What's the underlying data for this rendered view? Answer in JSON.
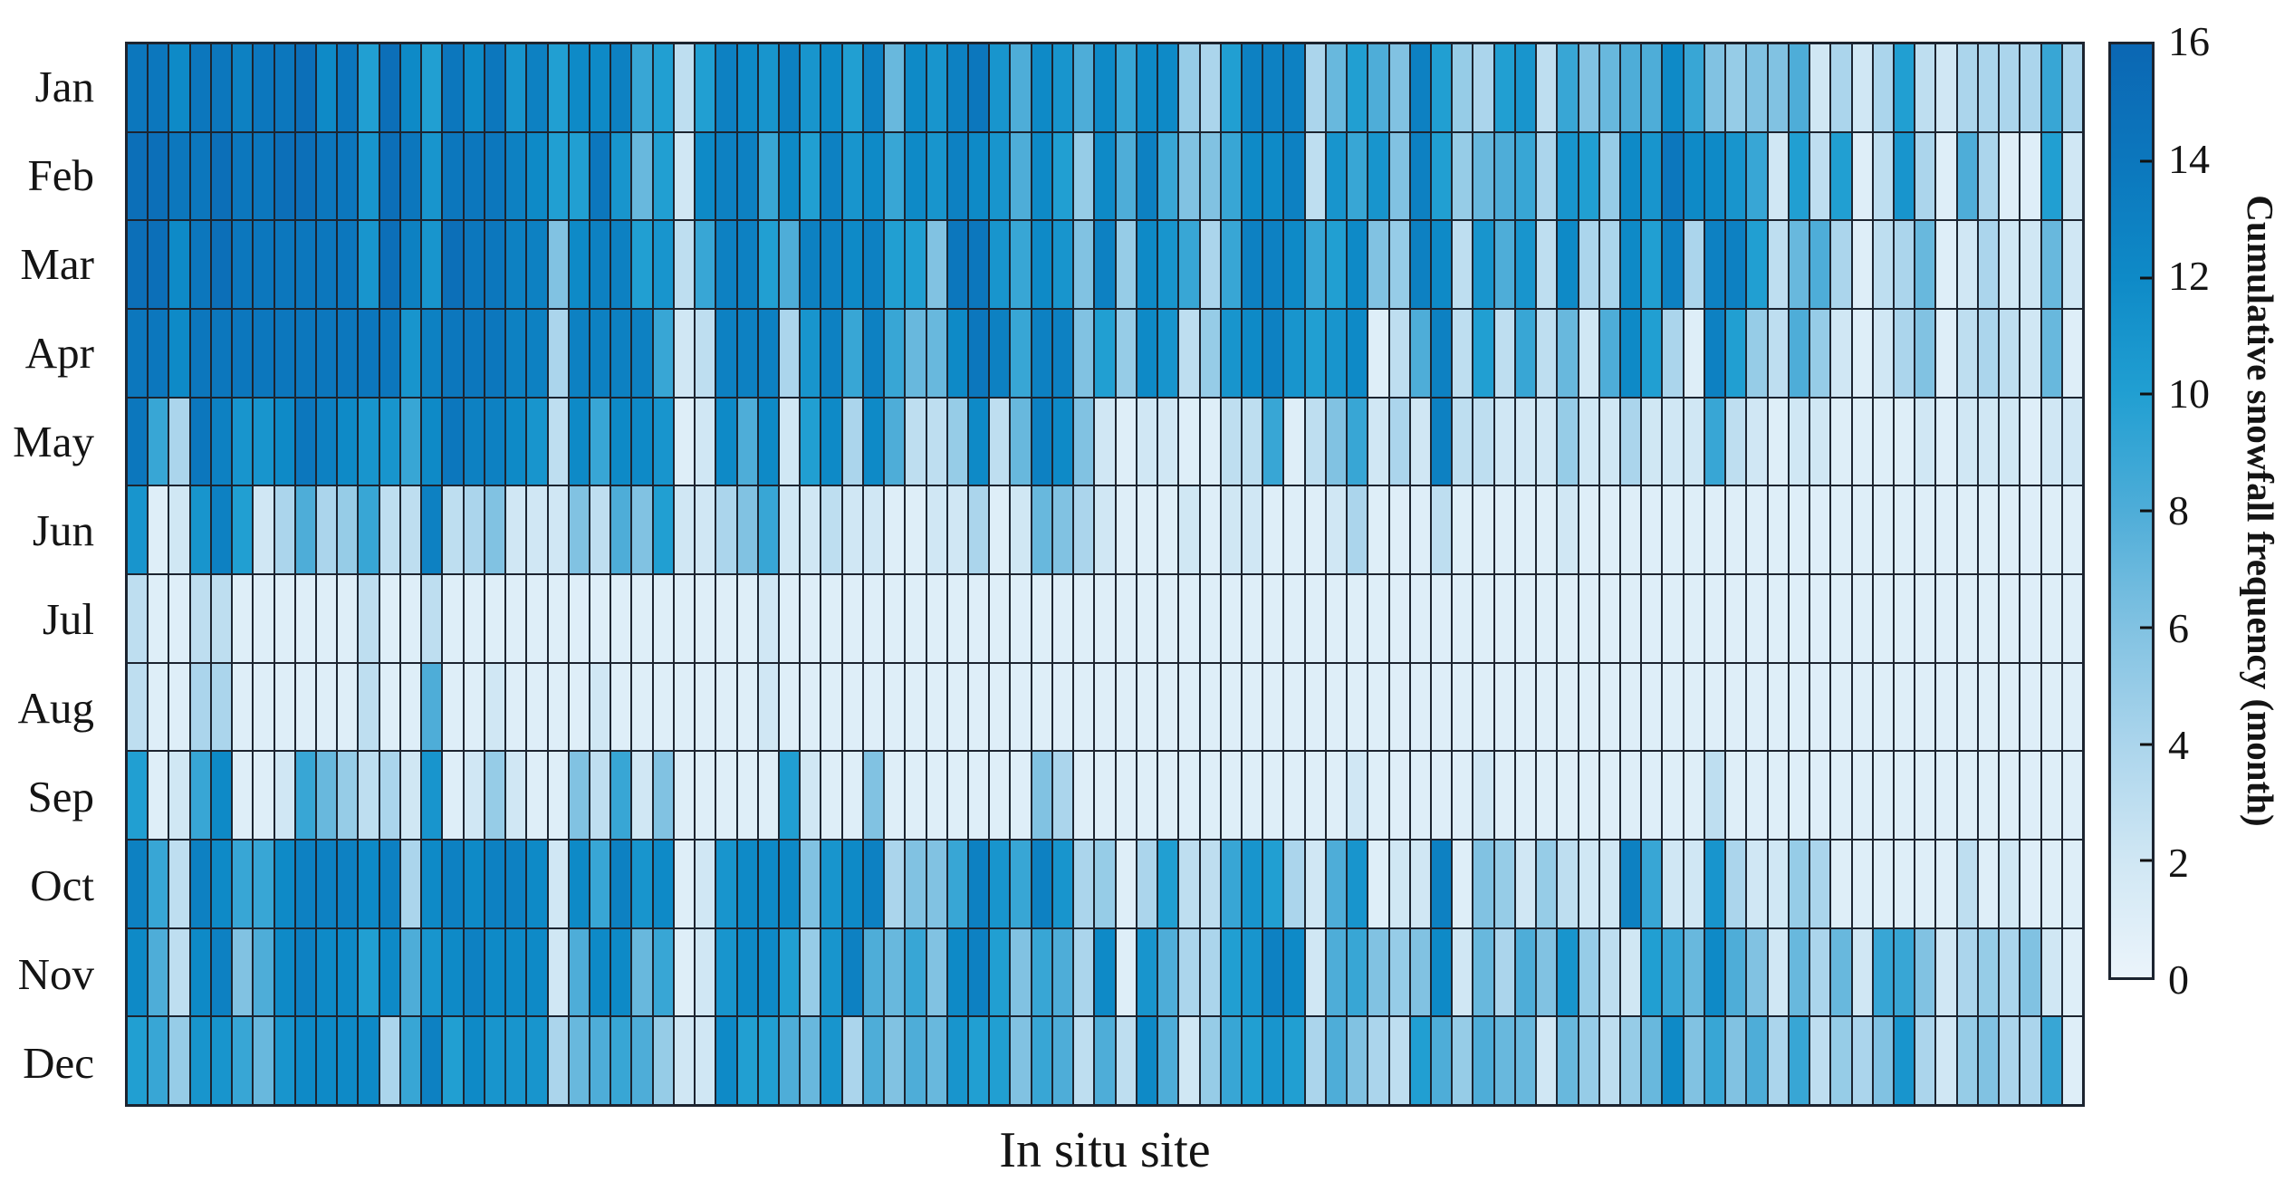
{
  "chart_data": {
    "type": "heatmap",
    "title": "",
    "xlabel": "In situ site",
    "ylabel": "",
    "n_columns": 93,
    "x_tick_labels_shown": false,
    "value_range": [
      0,
      16
    ],
    "grid": "on",
    "legend_position": "none",
    "colorbar": {
      "label": "Cumulative snowfall frequency (month)",
      "orientation": "vertical",
      "tick_labels": [
        16,
        14,
        12,
        10,
        8,
        6,
        4,
        2,
        0
      ],
      "tick_marks": [
        14,
        12,
        10,
        8,
        6,
        4,
        2
      ]
    },
    "colormap_stops": [
      {
        "value": 0,
        "color": "#ebf4fb"
      },
      {
        "value": 2,
        "color": "#d0e7f4"
      },
      {
        "value": 4,
        "color": "#abd5ec"
      },
      {
        "value": 6,
        "color": "#81c2e2"
      },
      {
        "value": 8,
        "color": "#4eadd8"
      },
      {
        "value": 10,
        "color": "#219fd2"
      },
      {
        "value": 12,
        "color": "#0e8ac7"
      },
      {
        "value": 14,
        "color": "#0c77bd"
      },
      {
        "value": 16,
        "color": "#0b67b3"
      }
    ],
    "line_color": "#1c2430",
    "series": [
      {
        "name": "Jan",
        "values": [
          14,
          14,
          12,
          14,
          14,
          13,
          14,
          14,
          15,
          12,
          14,
          10,
          15,
          12,
          10,
          14,
          12,
          14,
          11,
          13,
          10,
          12,
          12,
          13,
          9,
          10,
          3,
          10,
          13,
          12,
          11,
          13,
          11,
          12,
          10,
          13,
          7,
          12,
          11,
          13,
          14,
          11,
          8,
          12,
          11,
          8,
          12,
          9,
          12,
          12,
          5,
          4,
          10,
          13,
          13,
          13,
          4,
          7,
          10,
          8,
          6,
          13,
          10,
          5,
          4,
          10,
          11,
          3,
          9,
          6,
          7,
          8,
          8,
          12,
          9,
          6,
          5,
          6,
          6,
          8,
          2,
          4,
          2,
          4,
          10,
          3,
          2,
          4,
          4,
          4,
          4,
          9,
          4
        ]
      },
      {
        "name": "Feb",
        "values": [
          15,
          15,
          14,
          14,
          15,
          14,
          14,
          15,
          15,
          14,
          14,
          11,
          15,
          14,
          11,
          14,
          14,
          14,
          13,
          12,
          10,
          10,
          14,
          11,
          7,
          10,
          2,
          12,
          13,
          13,
          9,
          12,
          10,
          13,
          11,
          12,
          9,
          12,
          11,
          13,
          12,
          11,
          8,
          12,
          10,
          5,
          12,
          8,
          13,
          9,
          6,
          6,
          9,
          12,
          12,
          13,
          3,
          11,
          9,
          11,
          6,
          13,
          10,
          5,
          7,
          8,
          9,
          4,
          11,
          10,
          5,
          12,
          11,
          14,
          12,
          12,
          11,
          9,
          2,
          10,
          3,
          10,
          1,
          3,
          11,
          4,
          1,
          8,
          4,
          1,
          1,
          10,
          2
        ]
      },
      {
        "name": "Mar",
        "values": [
          15,
          15,
          12,
          14,
          15,
          14,
          14,
          14,
          14,
          14,
          14,
          11,
          15,
          13,
          11,
          15,
          14,
          14,
          13,
          13,
          6,
          12,
          13,
          13,
          10,
          11,
          3,
          9,
          13,
          13,
          10,
          8,
          13,
          13,
          12,
          13,
          10,
          10,
          6,
          14,
          14,
          11,
          9,
          12,
          11,
          6,
          13,
          5,
          12,
          11,
          9,
          4,
          9,
          13,
          13,
          12,
          9,
          10,
          12,
          6,
          5,
          13,
          12,
          3,
          11,
          8,
          11,
          3,
          12,
          4,
          4,
          12,
          10,
          13,
          4,
          13,
          13,
          10,
          3,
          7,
          8,
          4,
          1,
          3,
          4,
          7,
          1,
          2,
          4,
          2,
          2,
          7,
          2
        ]
      },
      {
        "name": "Apr",
        "values": [
          14,
          14,
          12,
          14,
          14,
          14,
          14,
          14,
          14,
          14,
          14,
          14,
          14,
          11,
          13,
          14,
          14,
          14,
          13,
          13,
          4,
          13,
          13,
          13,
          13,
          9,
          2,
          3,
          13,
          13,
          13,
          4,
          11,
          13,
          9,
          13,
          9,
          7,
          7,
          12,
          14,
          13,
          9,
          13,
          13,
          6,
          10,
          5,
          12,
          11,
          3,
          5,
          11,
          12,
          13,
          11,
          10,
          11,
          12,
          1,
          3,
          8,
          13,
          3,
          10,
          3,
          9,
          3,
          7,
          2,
          8,
          12,
          10,
          4,
          1,
          13,
          10,
          5,
          3,
          8,
          5,
          2,
          1,
          2,
          4,
          6,
          1,
          3,
          4,
          3,
          2,
          7,
          1
        ]
      },
      {
        "name": "May",
        "values": [
          14,
          9,
          4,
          14,
          13,
          11,
          11,
          12,
          14,
          13,
          12,
          11,
          11,
          9,
          12,
          14,
          13,
          13,
          12,
          11,
          3,
          12,
          9,
          12,
          12,
          11,
          1,
          2,
          12,
          8,
          12,
          2,
          10,
          12,
          4,
          12,
          8,
          3,
          3,
          5,
          12,
          3,
          7,
          13,
          12,
          6,
          2,
          1,
          2,
          2,
          1,
          1,
          3,
          3,
          9,
          1,
          3,
          6,
          9,
          2,
          4,
          2,
          13,
          3,
          3,
          2,
          2,
          2,
          5,
          2,
          2,
          4,
          2,
          2,
          2,
          9,
          3,
          2,
          1,
          2,
          2,
          1,
          1,
          1,
          1,
          2,
          1,
          2,
          2,
          2,
          1,
          2,
          2
        ]
      },
      {
        "name": "Jun",
        "values": [
          11,
          1,
          2,
          11,
          13,
          10,
          2,
          4,
          8,
          4,
          5,
          9,
          3,
          3,
          13,
          3,
          4,
          6,
          2,
          2,
          2,
          6,
          3,
          8,
          6,
          10,
          2,
          2,
          4,
          6,
          9,
          2,
          2,
          3,
          2,
          2,
          1,
          1,
          2,
          2,
          4,
          1,
          2,
          7,
          6,
          4,
          2,
          1,
          1,
          1,
          2,
          1,
          2,
          2,
          1,
          1,
          1,
          2,
          4,
          1,
          1,
          1,
          3,
          1,
          1,
          1,
          1,
          1,
          2,
          1,
          1,
          1,
          1,
          1,
          1,
          1,
          1,
          1,
          1,
          1,
          1,
          1,
          1,
          1,
          1,
          1,
          1,
          1,
          1,
          1,
          1,
          1,
          1
        ]
      },
      {
        "name": "Jul",
        "values": [
          3,
          1,
          1,
          3,
          3,
          1,
          1,
          1,
          1,
          1,
          1,
          3,
          1,
          1,
          3,
          1,
          1,
          1,
          1,
          1,
          1,
          1,
          1,
          1,
          1,
          1,
          1,
          1,
          1,
          1,
          2,
          1,
          1,
          1,
          1,
          1,
          1,
          1,
          1,
          1,
          1,
          1,
          1,
          1,
          1,
          1,
          1,
          1,
          1,
          1,
          1,
          1,
          1,
          1,
          1,
          1,
          1,
          1,
          1,
          1,
          1,
          1,
          1,
          1,
          1,
          1,
          1,
          1,
          1,
          1,
          1,
          1,
          1,
          1,
          1,
          1,
          1,
          1,
          1,
          1,
          1,
          1,
          1,
          1,
          1,
          1,
          1,
          1,
          1,
          1,
          1,
          1,
          1
        ]
      },
      {
        "name": "Aug",
        "values": [
          3,
          1,
          1,
          4,
          4,
          1,
          1,
          1,
          1,
          1,
          1,
          3,
          1,
          1,
          8,
          1,
          1,
          2,
          1,
          1,
          1,
          1,
          2,
          1,
          1,
          1,
          1,
          1,
          1,
          1,
          2,
          1,
          1,
          1,
          1,
          1,
          1,
          1,
          1,
          1,
          1,
          1,
          1,
          1,
          1,
          1,
          1,
          1,
          1,
          1,
          1,
          1,
          1,
          1,
          1,
          1,
          1,
          1,
          1,
          1,
          1,
          1,
          1,
          1,
          1,
          1,
          1,
          1,
          1,
          1,
          1,
          1,
          1,
          1,
          1,
          1,
          1,
          1,
          1,
          1,
          1,
          1,
          1,
          1,
          1,
          1,
          1,
          1,
          1,
          1,
          1,
          1,
          1
        ]
      },
      {
        "name": "Sep",
        "values": [
          10,
          1,
          2,
          9,
          12,
          1,
          1,
          2,
          9,
          7,
          5,
          3,
          4,
          2,
          11,
          1,
          2,
          5,
          2,
          1,
          1,
          6,
          3,
          9,
          2,
          6,
          1,
          1,
          1,
          1,
          1,
          10,
          2,
          1,
          1,
          6,
          1,
          1,
          1,
          1,
          1,
          1,
          1,
          6,
          4,
          1,
          1,
          1,
          1,
          1,
          1,
          1,
          1,
          1,
          1,
          1,
          1,
          1,
          2,
          1,
          1,
          1,
          1,
          1,
          2,
          1,
          1,
          1,
          1,
          1,
          1,
          1,
          1,
          1,
          1,
          3,
          1,
          1,
          1,
          1,
          1,
          1,
          1,
          1,
          1,
          1,
          1,
          1,
          1,
          1,
          1,
          1,
          1
        ]
      },
      {
        "name": "Oct",
        "values": [
          13,
          9,
          3,
          13,
          12,
          9,
          9,
          12,
          13,
          13,
          13,
          12,
          13,
          4,
          12,
          13,
          12,
          13,
          13,
          12,
          2,
          12,
          9,
          13,
          11,
          12,
          1,
          2,
          11,
          12,
          12,
          12,
          6,
          11,
          12,
          13,
          4,
          6,
          6,
          9,
          13,
          11,
          9,
          13,
          11,
          4,
          5,
          1,
          4,
          10,
          3,
          3,
          9,
          11,
          10,
          4,
          2,
          8,
          11,
          1,
          2,
          2,
          13,
          1,
          6,
          5,
          2,
          5,
          3,
          2,
          2,
          13,
          9,
          2,
          2,
          11,
          4,
          2,
          2,
          5,
          4,
          1,
          1,
          1,
          1,
          1,
          1,
          3,
          1,
          2,
          1,
          1,
          1
        ]
      },
      {
        "name": "Nov",
        "values": [
          12,
          8,
          3,
          12,
          13,
          6,
          8,
          12,
          13,
          12,
          12,
          10,
          12,
          8,
          11,
          12,
          13,
          12,
          12,
          12,
          2,
          8,
          12,
          12,
          7,
          9,
          1,
          2,
          11,
          12,
          12,
          10,
          5,
          11,
          13,
          8,
          7,
          9,
          6,
          12,
          13,
          10,
          6,
          9,
          8,
          4,
          12,
          1,
          11,
          8,
          4,
          4,
          10,
          11,
          13,
          12,
          2,
          8,
          9,
          6,
          5,
          6,
          12,
          2,
          7,
          4,
          8,
          6,
          11,
          5,
          3,
          2,
          10,
          9,
          7,
          12,
          8,
          6,
          2,
          7,
          4,
          7,
          2,
          9,
          9,
          6,
          2,
          4,
          5,
          4,
          6,
          2,
          1
        ]
      },
      {
        "name": "Dec",
        "values": [
          10,
          9,
          5,
          11,
          11,
          9,
          7,
          11,
          12,
          12,
          12,
          12,
          4,
          9,
          13,
          10,
          12,
          11,
          11,
          11,
          4,
          7,
          8,
          9,
          8,
          5,
          2,
          2,
          12,
          10,
          10,
          8,
          7,
          11,
          4,
          8,
          6,
          8,
          7,
          11,
          10,
          10,
          6,
          9,
          8,
          3,
          8,
          3,
          12,
          8,
          2,
          5,
          9,
          10,
          11,
          10,
          4,
          8,
          6,
          4,
          3,
          10,
          8,
          5,
          8,
          7,
          7,
          2,
          7,
          5,
          3,
          5,
          7,
          12,
          6,
          9,
          6,
          8,
          4,
          9,
          3,
          5,
          4,
          6,
          11,
          4,
          2,
          5,
          6,
          4,
          4,
          9,
          1
        ]
      }
    ]
  }
}
